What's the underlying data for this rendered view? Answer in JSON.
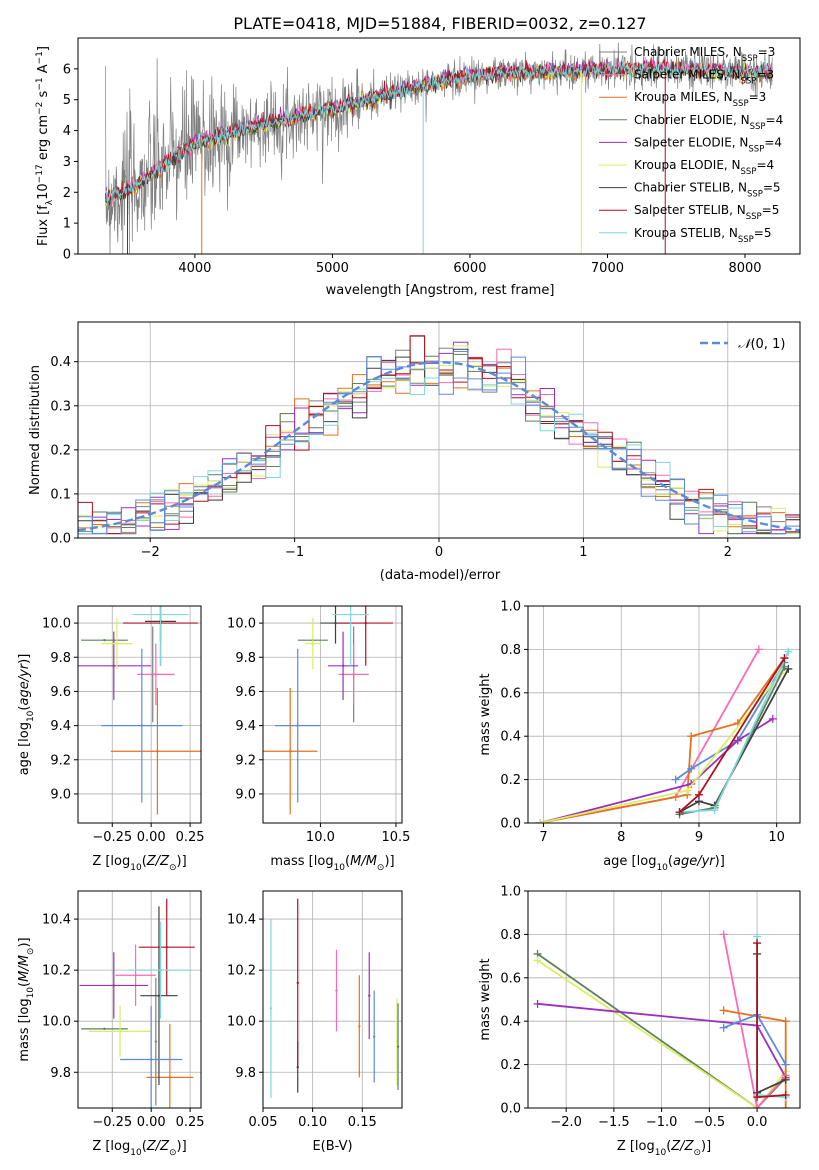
{
  "title": "PLATE=0418, MJD=51884, FIBERID=0032, z=0.127",
  "colors": {
    "Chabrier MILES": "#7f7f7f",
    "Salpeter MILES": "#ff69b4",
    "Kroupa MILES": "#e8711a",
    "Chabrier ELODIE": "#5f7f5f",
    "Salpeter ELODIE": "#9b30c0",
    "Kroupa ELODIE": "#d8f060",
    "Chabrier STELIB": "#404040",
    "Salpeter STELIB": "#b01020",
    "Kroupa STELIB": "#7fd8d8",
    "gaussian": "#5b8bd9"
  },
  "chart_data": [
    {
      "id": "spectrum",
      "type": "line",
      "xlabel": "wavelength [Angstrom, rest frame]",
      "ylabel": "Flux [f_λ 10^-17 erg cm^-2 s^-1 A^-1]",
      "xlim": [
        3150,
        8400
      ],
      "ylim": [
        0,
        7
      ],
      "xticks": [
        4000,
        5000,
        6000,
        7000,
        8000
      ],
      "yticks": [
        0,
        1,
        2,
        3,
        4,
        5,
        6
      ],
      "legend_loc": "right",
      "legend": [
        {
          "label": "Chabrier MILES, N_SSP=3",
          "color_key": "Chabrier MILES"
        },
        {
          "label": "Salpeter MILES, N_SSP=3",
          "color_key": "Salpeter MILES"
        },
        {
          "label": "Kroupa MILES, N_SSP=3",
          "color_key": "Kroupa MILES"
        },
        {
          "label": "Chabrier ELODIE, N_SSP=4",
          "color_key": "Chabrier ELODIE"
        },
        {
          "label": "Salpeter ELODIE, N_SSP=4",
          "color_key": "Salpeter ELODIE"
        },
        {
          "label": "Kroupa ELODIE, N_SSP=4",
          "color_key": "Kroupa ELODIE"
        },
        {
          "label": "Chabrier STELIB, N_SSP=5",
          "color_key": "Chabrier STELIB"
        },
        {
          "label": "Salpeter STELIB, N_SSP=5",
          "color_key": "Salpeter STELIB"
        },
        {
          "label": "Kroupa STELIB, N_SSP=5",
          "color_key": "Kroupa STELIB"
        }
      ],
      "data_trend": {
        "x": [
          3350,
          3600,
          4000,
          4500,
          5000,
          5500,
          6000,
          6500,
          7000,
          7500,
          8000,
          8200
        ],
        "y": [
          1.8,
          2.3,
          3.6,
          4.2,
          4.7,
          5.3,
          5.8,
          5.9,
          6.0,
          6.0,
          5.9,
          5.9
        ]
      }
    },
    {
      "id": "residuals",
      "type": "bar",
      "xlabel": "(data-model)/error",
      "ylabel": "Normed distribution",
      "xlim": [
        -2.5,
        2.5
      ],
      "ylim": [
        0,
        0.49
      ],
      "xticks": [
        -2,
        -1,
        0,
        1,
        2
      ],
      "yticks": [
        0.0,
        0.1,
        0.2,
        0.3,
        0.4
      ],
      "legend": [
        {
          "label": "N(0,1)",
          "color_key": "gaussian"
        }
      ],
      "bin_width": 0.1
    },
    {
      "id": "age-Z",
      "type": "scatter",
      "xlabel": "Z [log10(Z/Z⊙)]",
      "ylabel": "age [log10(age/yr)]",
      "xlim": [
        -0.47,
        0.32
      ],
      "ylim": [
        8.83,
        10.1
      ],
      "xticks": [
        -0.25,
        0.0,
        0.25
      ],
      "yticks": [
        9.0,
        9.2,
        9.4,
        9.6,
        9.8,
        10.0
      ],
      "points": [
        {
          "c": "Chabrier MILES",
          "x": 0.01,
          "y": 9.7,
          "xe": 0.0,
          "ye": 0.28
        },
        {
          "c": "Salpeter MILES",
          "x": 0.03,
          "y": 9.7,
          "xe": 0.12,
          "ye": 0.18
        },
        {
          "c": "Kroupa MILES",
          "x": 0.04,
          "y": 9.25,
          "xe": 0.3,
          "ye": 0.37
        },
        {
          "c": "Chabrier ELODIE",
          "x": -0.3,
          "y": 9.9,
          "xe": 0.15,
          "ye": 0.0
        },
        {
          "c": "Salpeter ELODIE",
          "x": -0.24,
          "y": 9.75,
          "xe": 0.24,
          "ye": 0.2
        },
        {
          "c": "Kroupa ELODIE",
          "x": -0.22,
          "y": 9.88,
          "xe": 0.1,
          "ye": 0.15
        },
        {
          "c": "Chabrier STELIB",
          "x": 0.06,
          "y": 10.01,
          "xe": 0.1,
          "ye": 0.12
        },
        {
          "c": "Salpeter STELIB",
          "x": 0.06,
          "y": 10.0,
          "xe": 0.24,
          "ye": 0.25
        },
        {
          "c": "Kroupa STELIB",
          "x": 0.06,
          "y": 10.05,
          "xe": 0.18,
          "ye": 0.3
        },
        {
          "c": "gaussian",
          "x": -0.06,
          "y": 9.4,
          "xe": 0.26,
          "ye": 0.45
        }
      ]
    },
    {
      "id": "age-mass",
      "type": "scatter",
      "xlabel": "mass [log10(M/M⊙)]",
      "ylabel": "",
      "xlim": [
        9.62,
        10.54
      ],
      "ylim": [
        8.83,
        10.1
      ],
      "xticks": [
        10.0,
        10.5
      ],
      "yticks": [
        9.0,
        9.2,
        9.4,
        9.6,
        9.8,
        10.0
      ],
      "points": [
        {
          "c": "Chabrier MILES",
          "x": 10.22,
          "y": 9.7,
          "xe": 0.0,
          "ye": 0.28
        },
        {
          "c": "Salpeter MILES",
          "x": 10.22,
          "y": 9.7,
          "xe": 0.1,
          "ye": 0.18
        },
        {
          "c": "Kroupa MILES",
          "x": 9.8,
          "y": 9.25,
          "xe": 0.18,
          "ye": 0.37
        },
        {
          "c": "Chabrier ELODIE",
          "x": 9.95,
          "y": 9.9,
          "xe": 0.1,
          "ye": 0.0
        },
        {
          "c": "Salpeter ELODIE",
          "x": 10.15,
          "y": 9.75,
          "xe": 0.1,
          "ye": 0.2
        },
        {
          "c": "Kroupa ELODIE",
          "x": 9.95,
          "y": 9.88,
          "xe": 0.05,
          "ye": 0.15
        },
        {
          "c": "Chabrier STELIB",
          "x": 10.1,
          "y": 10.0,
          "xe": 0.1,
          "ye": 0.12
        },
        {
          "c": "Salpeter STELIB",
          "x": 10.3,
          "y": 10.0,
          "xe": 0.18,
          "ye": 0.25
        },
        {
          "c": "Kroupa STELIB",
          "x": 10.2,
          "y": 10.05,
          "xe": 0.12,
          "ye": 0.3
        },
        {
          "c": "gaussian",
          "x": 9.85,
          "y": 9.4,
          "xe": 0.15,
          "ye": 0.45
        }
      ]
    },
    {
      "id": "weight-age",
      "type": "line",
      "xlabel": "age [log10(age/yr)]",
      "ylabel": "mass weight",
      "xlim": [
        6.8,
        10.3
      ],
      "ylim": [
        0,
        1
      ],
      "xticks": [
        7,
        8,
        9,
        10
      ],
      "yticks": [
        0.0,
        0.2,
        0.4,
        0.6,
        0.8,
        1.0
      ],
      "series": [
        {
          "c": "Salpeter MILES",
          "x": [
            6.95,
            8.7,
            9.77
          ],
          "y": [
            0.0,
            0.12,
            0.8
          ]
        },
        {
          "c": "Kroupa MILES",
          "x": [
            6.95,
            8.85,
            8.9,
            9.5,
            10.1
          ],
          "y": [
            0.0,
            0.13,
            0.4,
            0.46,
            0.76
          ]
        },
        {
          "c": "gaussian",
          "x": [
            8.7,
            8.9,
            9.5,
            10.1
          ],
          "y": [
            0.2,
            0.25,
            0.38,
            0.74
          ]
        },
        {
          "c": "Salpeter ELODIE",
          "x": [
            6.95,
            8.9,
            9.5,
            9.95
          ],
          "y": [
            0.0,
            0.18,
            0.38,
            0.48
          ]
        },
        {
          "c": "Kroupa ELODIE",
          "x": [
            6.95,
            8.85,
            10.05
          ],
          "y": [
            0.0,
            0.15,
            0.69
          ]
        },
        {
          "c": "Chabrier STELIB",
          "x": [
            8.75,
            9.0,
            9.2,
            10.15
          ],
          "y": [
            0.05,
            0.1,
            0.08,
            0.71
          ]
        },
        {
          "c": "Chabrier ELODIE",
          "x": [
            8.75,
            9.2,
            10.1
          ],
          "y": [
            0.04,
            0.07,
            0.72
          ]
        },
        {
          "c": "Kroupa STELIB",
          "x": [
            8.75,
            9.2,
            10.15
          ],
          "y": [
            0.05,
            0.06,
            0.79
          ]
        },
        {
          "c": "Salpeter STELIB",
          "x": [
            8.75,
            9.0,
            10.1
          ],
          "y": [
            0.05,
            0.13,
            0.76
          ]
        }
      ]
    },
    {
      "id": "mass-Z",
      "type": "scatter",
      "xlabel": "Z [log10(Z/Z⊙)]",
      "ylabel": "mass [log10(M/M⊙)]",
      "xlim": [
        -0.47,
        0.32
      ],
      "ylim": [
        9.66,
        10.51
      ],
      "xticks": [
        -0.25,
        0.0,
        0.25
      ],
      "yticks": [
        9.8,
        10.0,
        10.2,
        10.4
      ],
      "points": [
        {
          "c": "Chabrier MILES",
          "x": 0.03,
          "y": 9.92,
          "xe": 0.0,
          "ye": 0.25
        },
        {
          "c": "Salpeter MILES",
          "x": -0.1,
          "y": 10.18,
          "xe": 0.13,
          "ye": 0.12
        },
        {
          "c": "Kroupa MILES",
          "x": 0.12,
          "y": 9.78,
          "xe": 0.15,
          "ye": 0.21
        },
        {
          "c": "Chabrier ELODIE",
          "x": -0.3,
          "y": 9.97,
          "xe": 0.15,
          "ye": 0.0
        },
        {
          "c": "Salpeter ELODIE",
          "x": -0.24,
          "y": 10.14,
          "xe": 0.22,
          "ye": 0.13
        },
        {
          "c": "Kroupa ELODIE",
          "x": -0.2,
          "y": 9.96,
          "xe": 0.2,
          "ye": 0.1
        },
        {
          "c": "Chabrier STELIB",
          "x": 0.05,
          "y": 10.1,
          "xe": 0.12,
          "ye": 0.35
        },
        {
          "c": "Salpeter STELIB",
          "x": 0.1,
          "y": 10.29,
          "xe": 0.18,
          "ye": 0.19
        },
        {
          "c": "Kroupa STELIB",
          "x": 0.06,
          "y": 10.2,
          "xe": 0.2,
          "ye": 0.19
        },
        {
          "c": "gaussian",
          "x": 0.0,
          "y": 9.85,
          "xe": 0.2,
          "ye": 0.21
        }
      ]
    },
    {
      "id": "mass-EBV",
      "type": "scatter",
      "xlabel": "E(B-V)",
      "ylabel": "",
      "xlim": [
        0.05,
        0.19
      ],
      "ylim": [
        9.66,
        10.51
      ],
      "xticks": [
        0.05,
        0.1,
        0.15
      ],
      "yticks": [
        9.8,
        10.0,
        10.2,
        10.4
      ],
      "points": [
        {
          "c": "Kroupa STELIB",
          "x": 0.058,
          "y": 10.05,
          "ye": 0.35
        },
        {
          "c": "Chabrier STELIB",
          "x": 0.085,
          "y": 9.82,
          "ye": 0.1
        },
        {
          "c": "Salpeter STELIB",
          "x": 0.085,
          "y": 10.15,
          "ye": 0.33
        },
        {
          "c": "Salpeter MILES",
          "x": 0.124,
          "y": 10.12,
          "ye": 0.16
        },
        {
          "c": "Kroupa MILES",
          "x": 0.147,
          "y": 9.98,
          "ye": 0.2
        },
        {
          "c": "Salpeter ELODIE",
          "x": 0.157,
          "y": 10.1,
          "ye": 0.17
        },
        {
          "c": "gaussian",
          "x": 0.162,
          "y": 9.94,
          "ye": 0.18
        },
        {
          "c": "Kroupa ELODIE",
          "x": 0.185,
          "y": 9.92,
          "ye": 0.17
        },
        {
          "c": "Chabrier ELODIE",
          "x": 0.186,
          "y": 9.9,
          "ye": 0.17
        }
      ]
    },
    {
      "id": "weight-Z",
      "type": "line",
      "xlabel": "Z [log10(Z/Z⊙)]",
      "ylabel": "mass weight",
      "xlim": [
        -2.4,
        0.45
      ],
      "ylim": [
        0,
        1
      ],
      "xticks": [
        -2.0,
        -1.5,
        -1.0,
        -0.5,
        0.0
      ],
      "yticks": [
        0.0,
        0.2,
        0.4,
        0.6,
        0.8,
        1.0
      ],
      "series": [
        {
          "c": "Chabrier ELODIE",
          "x": [
            -2.3,
            0.0,
            0.3
          ],
          "y": [
            0.71,
            0.0,
            0.14
          ]
        },
        {
          "c": "Kroupa ELODIE",
          "x": [
            -2.3,
            0.0,
            0.3
          ],
          "y": [
            0.68,
            0.0,
            0.17
          ]
        },
        {
          "c": "Salpeter ELODIE",
          "x": [
            -2.3,
            0.0,
            0.3
          ],
          "y": [
            0.48,
            0.38,
            0.14
          ]
        },
        {
          "c": "Salpeter MILES",
          "x": [
            -0.35,
            0.0,
            0.3
          ],
          "y": [
            0.8,
            0.0,
            0.15
          ]
        },
        {
          "c": "Kroupa MILES",
          "x": [
            -0.35,
            0.3,
            0.3
          ],
          "y": [
            0.45,
            0.4,
            0.0
          ]
        },
        {
          "c": "gaussian",
          "x": [
            -0.35,
            0.0,
            0.3
          ],
          "y": [
            0.37,
            0.43,
            0.2
          ]
        },
        {
          "c": "Chabrier STELIB",
          "x": [
            0.0,
            0.0,
            0.3
          ],
          "y": [
            0.71,
            0.07,
            0.13
          ]
        },
        {
          "c": "Kroupa STELIB",
          "x": [
            0.0,
            0.0,
            0.3
          ],
          "y": [
            0.79,
            0.06,
            0.05
          ]
        },
        {
          "c": "Salpeter STELIB",
          "x": [
            0.0,
            0.0,
            0.3
          ],
          "y": [
            0.76,
            0.05,
            0.06
          ]
        }
      ]
    }
  ]
}
